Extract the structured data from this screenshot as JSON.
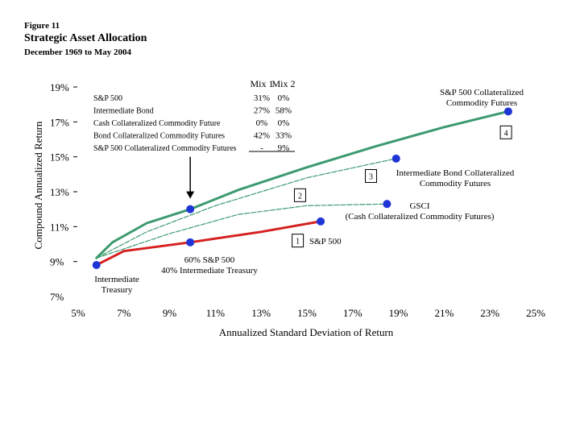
{
  "figure_label": "Figure 11",
  "title": "Strategic Asset Allocation",
  "subtitle": "December 1969 to May 2004",
  "colors": {
    "efficient_frontier": "#3b9a6e",
    "dashed_frontier": "#3b9a6e",
    "treasury_equity": "#d62020",
    "point": "#1f35d6",
    "arrow": "#000000"
  },
  "mix_table": {
    "headers": [
      "Mix 1",
      "Mix 2"
    ],
    "rows": [
      {
        "label": "S&P 500",
        "mix1": "31%",
        "mix2": "0%"
      },
      {
        "label": "Intermediate Bond",
        "mix1": "27%",
        "mix2": "58%"
      },
      {
        "label": "Cash Collateralized Commodity Future",
        "mix1": "0%",
        "mix2": "0%"
      },
      {
        "label": "Bond Collateralized Commodity Futures",
        "mix1": "42%",
        "mix2": "33%"
      },
      {
        "label": "S&P 500 Collateralized Commodity Futures",
        "mix1": "-",
        "mix2": "9%"
      }
    ]
  },
  "chart_data": {
    "type": "scatter",
    "xlabel": "Annualized Standard Deviation of Return",
    "ylabel": "Compound Annualized Return",
    "xlim": [
      5,
      25
    ],
    "ylim": [
      7,
      19
    ],
    "x_ticks": [
      5,
      7,
      9,
      11,
      13,
      15,
      17,
      19,
      21,
      23,
      25
    ],
    "x_tick_labels": [
      "5%",
      "7%",
      "9%",
      "11%",
      "13%",
      "15%",
      "17%",
      "19%",
      "21%",
      "23%",
      "25%"
    ],
    "y_ticks": [
      7,
      9,
      11,
      13,
      15,
      17,
      19
    ],
    "y_tick_labels": [
      "7%",
      "9%",
      "11%",
      "13%",
      "15%",
      "17%",
      "19%"
    ],
    "grid": false,
    "points": [
      {
        "label": "Intermediate\nTreasury",
        "x": 5.8,
        "y": 8.8
      },
      {
        "label": "60% S&P 500\n40% Intermediate Treasury",
        "x": 9.9,
        "y": 10.1
      },
      {
        "label": "S&P 500",
        "x": 15.6,
        "y": 11.3
      },
      {
        "label": "",
        "x": 9.9,
        "y": 12.0
      },
      {
        "label": "GSCI\n(Cash Collateralized Commodity Futures)",
        "x": 18.5,
        "y": 12.3
      },
      {
        "label": "Intermediate Bond Collateralized\nCommodity Futures",
        "x": 18.9,
        "y": 14.9
      },
      {
        "label": "S&P 500 Collateralized\nCommodity Futures",
        "x": 23.8,
        "y": 17.6
      }
    ],
    "frontiers": [
      {
        "style": "solid",
        "color": "#3b9a6e",
        "x": [
          5.8,
          6.5,
          8.0,
          9.9,
          12.0,
          15.0,
          18.0,
          21.0,
          23.8
        ],
        "y": [
          9.2,
          10.1,
          11.2,
          12.0,
          13.1,
          14.4,
          15.6,
          16.7,
          17.6
        ]
      },
      {
        "style": "dashed",
        "color": "#3b9a6e",
        "x": [
          5.8,
          8.0,
          11.0,
          15.0,
          18.9
        ],
        "y": [
          9.2,
          10.7,
          12.2,
          13.8,
          14.9
        ]
      },
      {
        "style": "dashed",
        "color": "#3b9a6e",
        "x": [
          5.8,
          9.0,
          12.0,
          15.0,
          18.5
        ],
        "y": [
          9.2,
          10.6,
          11.7,
          12.2,
          12.3
        ]
      },
      {
        "style": "solid",
        "color": "#d62020",
        "x": [
          5.8,
          7.0,
          9.9,
          13.0,
          15.6
        ],
        "y": [
          8.8,
          9.6,
          10.1,
          10.7,
          11.3
        ]
      }
    ],
    "boxed_numbers": [
      {
        "text": "1",
        "x": 14.6,
        "y": 10.2
      },
      {
        "text": "2",
        "x": 14.7,
        "y": 12.8
      },
      {
        "text": "3",
        "x": 17.8,
        "y": 13.9
      },
      {
        "text": "4",
        "x": 23.7,
        "y": 16.4
      }
    ],
    "arrow": {
      "x": 9.9,
      "y_from": 15.0,
      "y_to": 12.6
    }
  }
}
